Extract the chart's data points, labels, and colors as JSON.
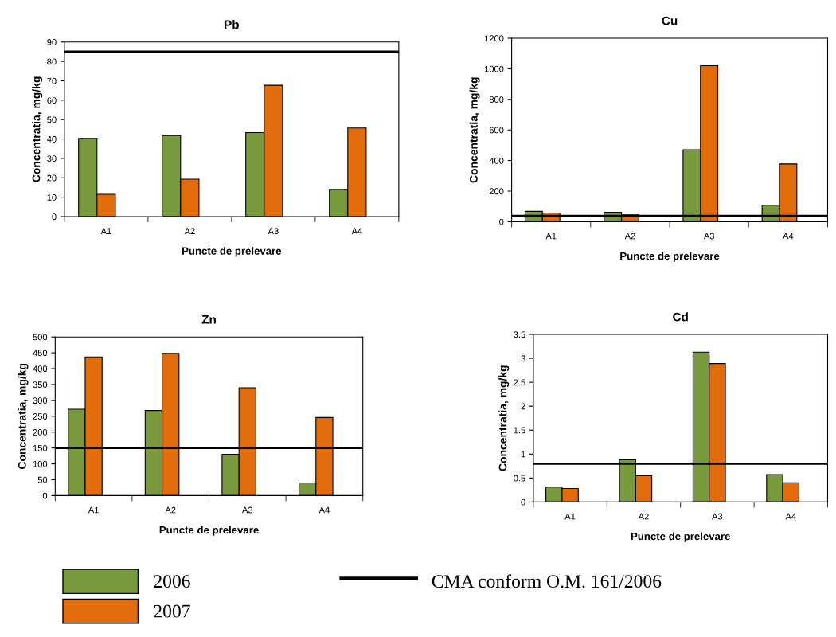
{
  "chart_data": [
    {
      "type": "bar",
      "title": "Pb",
      "xlabel": "Puncte de prelevare",
      "ylabel": "Concentratia, mg/kg",
      "categories": [
        "A1",
        "A2",
        "A3",
        "A4"
      ],
      "series": [
        {
          "name": "2006",
          "color": "#789a3c",
          "values": [
            40.3,
            41.8,
            43.3,
            14
          ]
        },
        {
          "name": "2007",
          "color": "#e36c0a",
          "values": [
            11.5,
            19.3,
            67.7,
            45.7
          ]
        }
      ],
      "ylim": [
        0,
        90
      ],
      "yticks": [
        0,
        10,
        20,
        30,
        40,
        50,
        60,
        70,
        80,
        90
      ],
      "ref_lines": [
        {
          "axis": "y",
          "value": 85,
          "label": "CMA conform O.M. 161/2006",
          "color": "#000000"
        }
      ],
      "legend": "bottom",
      "grid": false
    },
    {
      "type": "bar",
      "title": "Cu",
      "xlabel": "Puncte de prelevare",
      "ylabel": "Concentratia, mg/kg",
      "categories": [
        "A1",
        "A2",
        "A3",
        "A4"
      ],
      "series": [
        {
          "color": "#789a3c",
          "values": [
            68,
            62,
            470,
            108
          ]
        },
        {
          "color": "#e36c0a",
          "values": [
            57,
            45,
            1020,
            378
          ]
        }
      ],
      "ylim": [
        0,
        1200
      ],
      "yticks": [
        0,
        200,
        400,
        600,
        800,
        1000,
        1200
      ],
      "ref_lines": [
        {
          "axis": "y",
          "value": 38,
          "color": "#000000"
        }
      ],
      "grid": false
    },
    {
      "type": "bar",
      "title": "Zn",
      "xlabel": "Puncte de prelevare",
      "ylabel": "Concentratia, mg/kg",
      "categories": [
        "A1",
        "A2",
        "A3",
        "A4"
      ],
      "series": [
        {
          "color": "#789a3c",
          "values": [
            272,
            268,
            130,
            40
          ]
        },
        {
          "color": "#e36c0a",
          "values": [
            437,
            448,
            340,
            246
          ]
        }
      ],
      "ylim": [
        0,
        500
      ],
      "yticks": [
        0,
        50,
        100,
        150,
        200,
        250,
        300,
        350,
        400,
        450,
        500
      ],
      "ref_lines": [
        {
          "axis": "y",
          "value": 150,
          "color": "#000000"
        }
      ],
      "grid": false
    },
    {
      "type": "bar",
      "title": "Cd",
      "xlabel": "Puncte de prelevare",
      "ylabel": "Concentratia, mg/kg",
      "categories": [
        "A1",
        "A2",
        "A3",
        "A4"
      ],
      "series": [
        {
          "color": "#789a3c",
          "values": [
            0.31,
            0.88,
            3.13,
            0.57
          ]
        },
        {
          "color": "#e36c0a",
          "values": [
            0.28,
            0.55,
            2.89,
            0.4
          ]
        }
      ],
      "ylim": [
        0,
        3.5
      ],
      "yticks": [
        0,
        0.5,
        1,
        1.5,
        2,
        2.5,
        3,
        3.5
      ],
      "ref_lines": [
        {
          "axis": "y",
          "value": 0.8,
          "color": "#000000"
        }
      ],
      "grid": false
    }
  ]
}
